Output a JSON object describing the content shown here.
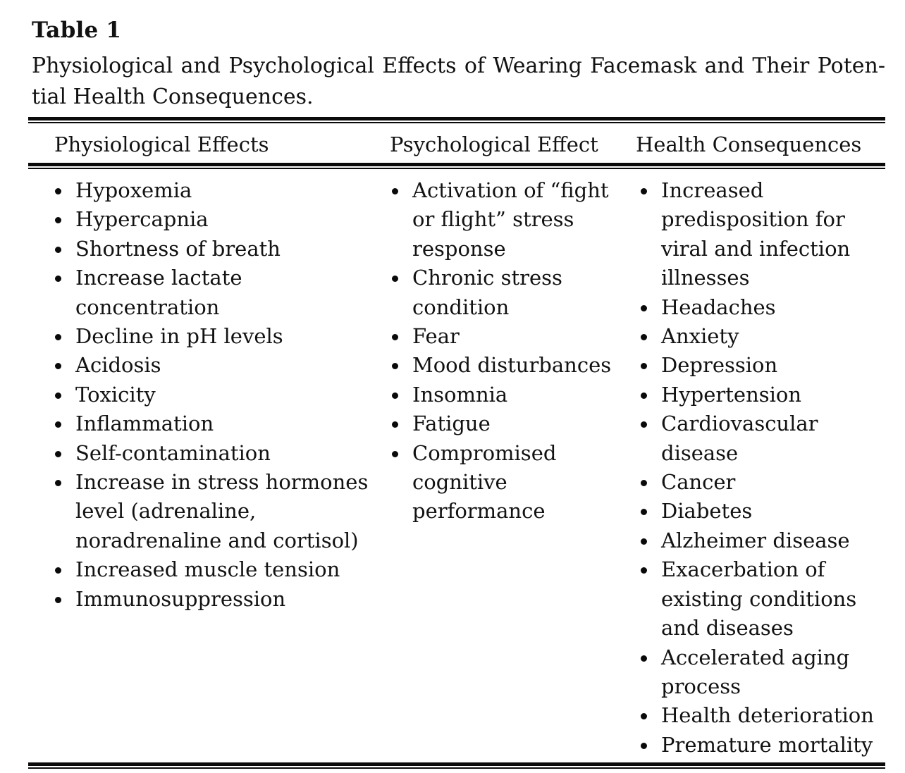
{
  "table": {
    "label": "Table 1",
    "caption_line1": "Physiological and Psychological Effects of Wearing Facemask and Their Poten-",
    "caption_line2": "tial Health Consequences.",
    "columns": [
      {
        "header": "Physiological Effects",
        "items": [
          "Hypoxemia",
          "Hypercapnia",
          "Shortness of breath",
          "Increase lactate\nconcentration",
          "Decline in pH levels",
          "Acidosis",
          "Toxicity",
          "Inflammation",
          "Self-contamination",
          "Increase in stress hormones\nlevel (adrenaline,\nnoradrenaline and cortisol)",
          "Increased muscle tension",
          "Immunosuppression"
        ]
      },
      {
        "header": "Psychological Effect",
        "items": [
          "Activation of “fight\nor flight” stress\nresponse",
          "Chronic stress\ncondition",
          "Fear",
          "Mood disturbances",
          "Insomnia",
          "Fatigue",
          "Compromised\ncognitive\nperformance"
        ]
      },
      {
        "header": "Health Consequences",
        "items": [
          "Increased\npredisposition for\nviral and infection\nillnesses",
          "Headaches",
          "Anxiety",
          "Depression",
          "Hypertension",
          "Cardiovascular\ndisease",
          "Cancer",
          "Diabetes",
          "Alzheimer disease",
          "Exacerbation of\nexisting conditions\nand diseases",
          "Accelerated aging\nprocess",
          "Health deterioration",
          "Premature mortality"
        ]
      }
    ],
    "text_color": "#121212",
    "rule_color": "#0b0b0b",
    "background_color": "#ffffff"
  }
}
